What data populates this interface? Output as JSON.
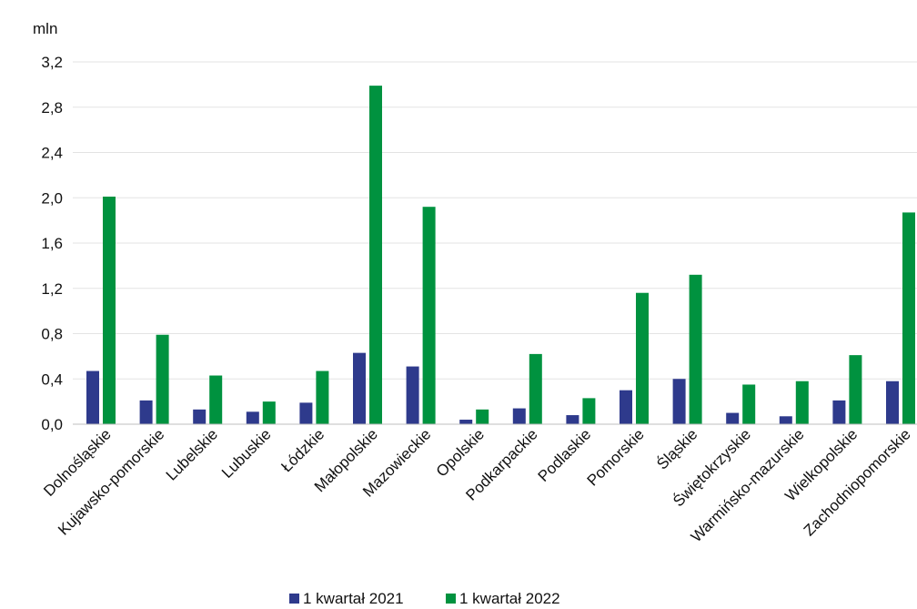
{
  "chart_data": {
    "type": "bar",
    "unit_label": "mln",
    "categories": [
      "Dolnośląskie",
      "Kujawsko-pomorskie",
      "Lubelskie",
      "Lubuskie",
      "Łódzkie",
      "Małopolskie",
      "Mazowieckie",
      "Opolskie",
      "Podkarpackie",
      "Podlaskie",
      "Pomorskie",
      "Śląskie",
      "Świętokrzyskie",
      "Warmińsko-mazurskie",
      "Wielkopolskie",
      "Zachodniopomorskie"
    ],
    "series": [
      {
        "name": "1 kwartał 2021",
        "color": "#2e3a8c",
        "values": [
          0.47,
          0.21,
          0.13,
          0.11,
          0.19,
          0.63,
          0.51,
          0.04,
          0.14,
          0.08,
          0.3,
          0.4,
          0.1,
          0.07,
          0.21,
          0.38
        ]
      },
      {
        "name": "1 kwartał 2022",
        "color": "#00923f",
        "values": [
          2.01,
          0.79,
          0.43,
          0.2,
          0.47,
          2.99,
          1.92,
          0.13,
          0.62,
          0.23,
          1.16,
          1.32,
          0.35,
          0.38,
          0.61,
          1.87
        ]
      }
    ],
    "yticks": [
      "0,0",
      "0,4",
      "0,8",
      "1,2",
      "1,6",
      "2,0",
      "2,4",
      "2,8",
      "3,2"
    ],
    "ylim": [
      0,
      3.2
    ],
    "grid": true,
    "legend_position": "bottom"
  }
}
